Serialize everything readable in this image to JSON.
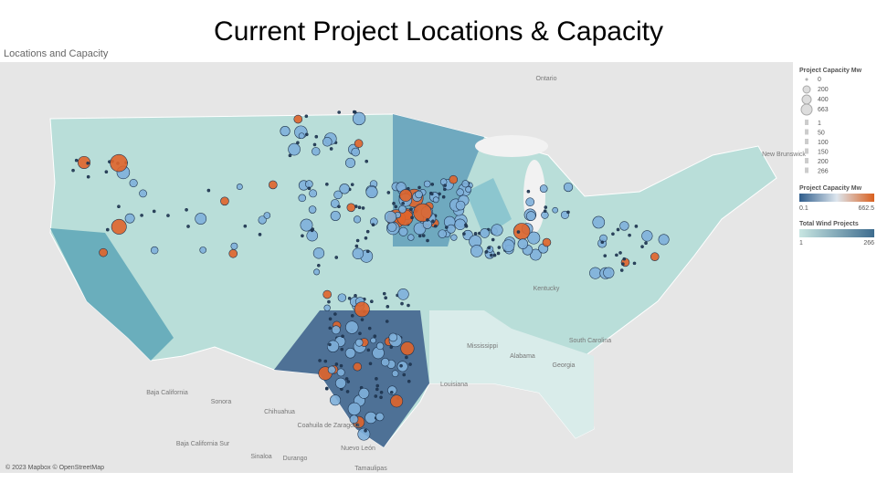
{
  "header": {
    "title": "Current Project Locations & Capacity"
  },
  "panel": {
    "title": "Locations and Capacity"
  },
  "map": {
    "labels": [
      {
        "text": "Ontario"
      },
      {
        "text": "New Brunswick"
      },
      {
        "text": "Kentucky"
      },
      {
        "text": "Mississippi"
      },
      {
        "text": "Alabama"
      },
      {
        "text": "Georgia"
      },
      {
        "text": "South Carolina"
      },
      {
        "text": "Louisiana"
      },
      {
        "text": "Baja California"
      },
      {
        "text": "Sonora"
      },
      {
        "text": "Chihuahua"
      },
      {
        "text": "Coahuila de Zaragoza"
      },
      {
        "text": "Nuevo León"
      },
      {
        "text": "Baja California Sur"
      },
      {
        "text": "Sinaloa"
      },
      {
        "text": "Durango"
      },
      {
        "text": "Tamaulipas"
      }
    ],
    "attribution": "© 2023 Mapbox © OpenStreetMap"
  },
  "legend": {
    "size": {
      "title": "Project Capacity Mw",
      "items": [
        0,
        200,
        400,
        663
      ]
    },
    "count": {
      "items": [
        1,
        50,
        100,
        150,
        200,
        266
      ]
    },
    "color": {
      "title": "Project Capacity Mw",
      "min": 0.1,
      "max": 662.5
    },
    "total": {
      "title": "Total Wind Projects",
      "min": 1,
      "max": 266
    }
  }
}
